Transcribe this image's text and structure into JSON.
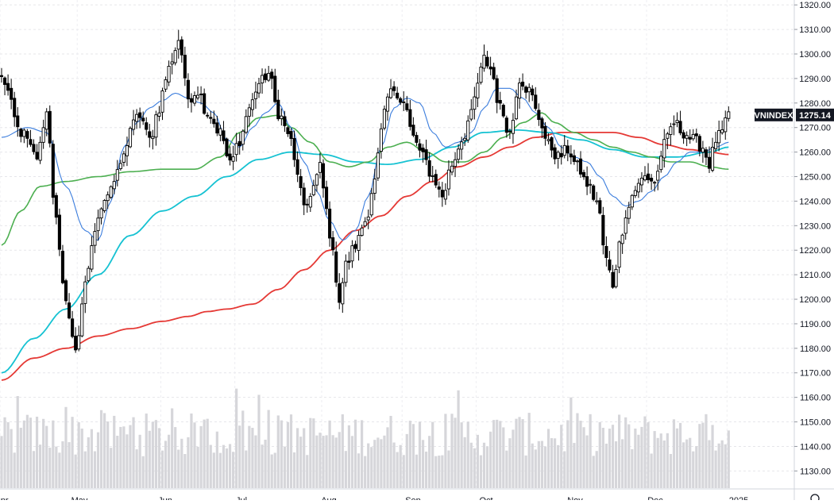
{
  "chart_data": {
    "type": "candlestick",
    "ticker": "VNINDEX",
    "last_price": "1275.14",
    "y_axis": {
      "ticks": [
        "1320.00",
        "1310.00",
        "1300.00",
        "1290.00",
        "1280.00",
        "1270.00",
        "1260.00",
        "1250.00",
        "1240.00",
        "1230.00",
        "1220.00",
        "1210.00",
        "1200.00",
        "1190.00",
        "1180.00",
        "1170.00",
        "1160.00",
        "1150.00",
        "1140.00",
        "1130.00"
      ],
      "range": [
        1123,
        1322
      ]
    },
    "x_axis": {
      "labels": [
        "Apr",
        "May",
        "Jun",
        "Jul",
        "Aug",
        "Sep",
        "Oct",
        "Nov",
        "Dec",
        "2025"
      ]
    },
    "grid": true,
    "colors": {
      "up": "#ffffff",
      "down": "#000000",
      "wick": "#000000",
      "ma_fast": "#3b7ddd",
      "ma_medium": "#16c2d2",
      "ma_slow_green": "#4caf50",
      "ma_long": "#e53935",
      "volume": "#d6d6da"
    },
    "price_anchors": [
      [
        0,
        1290
      ],
      [
        6,
        1268
      ],
      [
        11,
        1258
      ],
      [
        14,
        1276
      ],
      [
        17,
        1232
      ],
      [
        19,
        1205
      ],
      [
        23,
        1180
      ],
      [
        26,
        1205
      ],
      [
        29,
        1228
      ],
      [
        32,
        1242
      ],
      [
        35,
        1248
      ],
      [
        38,
        1258
      ],
      [
        40,
        1270
      ],
      [
        43,
        1275
      ],
      [
        46,
        1265
      ],
      [
        49,
        1278
      ],
      [
        51,
        1290
      ],
      [
        53,
        1298
      ],
      [
        55,
        1306
      ],
      [
        58,
        1282
      ],
      [
        61,
        1285
      ],
      [
        64,
        1276
      ],
      [
        68,
        1268
      ],
      [
        71,
        1255
      ],
      [
        74,
        1265
      ],
      [
        77,
        1278
      ],
      [
        80,
        1288
      ],
      [
        83,
        1292
      ],
      [
        86,
        1276
      ],
      [
        89,
        1268
      ],
      [
        92,
        1252
      ],
      [
        94,
        1236
      ],
      [
        97,
        1246
      ],
      [
        99,
        1254
      ],
      [
        101,
        1236
      ],
      [
        103,
        1218
      ],
      [
        105,
        1200
      ],
      [
        107,
        1214
      ],
      [
        110,
        1222
      ],
      [
        113,
        1232
      ],
      [
        116,
        1248
      ],
      [
        118,
        1268
      ],
      [
        120,
        1282
      ],
      [
        122,
        1286
      ],
      [
        125,
        1280
      ],
      [
        128,
        1266
      ],
      [
        131,
        1258
      ],
      [
        134,
        1250
      ],
      [
        137,
        1242
      ],
      [
        140,
        1255
      ],
      [
        143,
        1265
      ],
      [
        146,
        1275
      ],
      [
        148,
        1288
      ],
      [
        150,
        1298
      ],
      [
        152,
        1294
      ],
      [
        155,
        1278
      ],
      [
        158,
        1268
      ],
      [
        161,
        1290
      ],
      [
        164,
        1285
      ],
      [
        167,
        1274
      ],
      [
        170,
        1263
      ],
      [
        173,
        1258
      ],
      [
        176,
        1261
      ],
      [
        179,
        1254
      ],
      [
        182,
        1247
      ],
      [
        185,
        1240
      ],
      [
        188,
        1216
      ],
      [
        190,
        1206
      ],
      [
        192,
        1222
      ],
      [
        194,
        1235
      ],
      [
        197,
        1245
      ],
      [
        200,
        1250
      ],
      [
        203,
        1248
      ],
      [
        206,
        1263
      ],
      [
        209,
        1272
      ],
      [
        212,
        1268
      ],
      [
        215,
        1265
      ],
      [
        218,
        1262
      ],
      [
        220,
        1255
      ],
      [
        222,
        1265
      ],
      [
        224,
        1268
      ],
      [
        226,
        1275
      ]
    ],
    "ma_fast_anchors": [
      [
        0,
        1266
      ],
      [
        8,
        1270
      ],
      [
        14,
        1268
      ],
      [
        20,
        1246
      ],
      [
        26,
        1228
      ],
      [
        30,
        1224
      ],
      [
        34,
        1240
      ],
      [
        38,
        1262
      ],
      [
        42,
        1272
      ],
      [
        46,
        1278
      ],
      [
        50,
        1281
      ],
      [
        54,
        1284
      ],
      [
        58,
        1282
      ],
      [
        62,
        1280
      ],
      [
        66,
        1276
      ],
      [
        70,
        1265
      ],
      [
        74,
        1262
      ],
      [
        78,
        1270
      ],
      [
        82,
        1276
      ],
      [
        86,
        1280
      ],
      [
        90,
        1270
      ],
      [
        94,
        1256
      ],
      [
        98,
        1244
      ],
      [
        102,
        1232
      ],
      [
        106,
        1224
      ],
      [
        110,
        1228
      ],
      [
        114,
        1242
      ],
      [
        118,
        1262
      ],
      [
        122,
        1278
      ],
      [
        126,
        1282
      ],
      [
        130,
        1280
      ],
      [
        134,
        1268
      ],
      [
        138,
        1262
      ],
      [
        142,
        1264
      ],
      [
        146,
        1268
      ],
      [
        150,
        1278
      ],
      [
        154,
        1286
      ],
      [
        158,
        1286
      ],
      [
        162,
        1282
      ],
      [
        166,
        1276
      ],
      [
        170,
        1270
      ],
      [
        174,
        1262
      ],
      [
        178,
        1258
      ],
      [
        182,
        1256
      ],
      [
        186,
        1250
      ],
      [
        190,
        1242
      ],
      [
        194,
        1238
      ],
      [
        198,
        1240
      ],
      [
        202,
        1244
      ],
      [
        206,
        1250
      ],
      [
        210,
        1256
      ],
      [
        214,
        1260
      ],
      [
        218,
        1260
      ],
      [
        222,
        1262
      ],
      [
        226,
        1264
      ]
    ],
    "ma_medium_anchors": [
      [
        0,
        1170
      ],
      [
        10,
        1184
      ],
      [
        20,
        1196
      ],
      [
        30,
        1210
      ],
      [
        40,
        1226
      ],
      [
        50,
        1236
      ],
      [
        60,
        1242
      ],
      [
        70,
        1250
      ],
      [
        80,
        1257
      ],
      [
        90,
        1260
      ],
      [
        100,
        1259
      ],
      [
        110,
        1256
      ],
      [
        120,
        1255
      ],
      [
        130,
        1257
      ],
      [
        140,
        1262
      ],
      [
        150,
        1268
      ],
      [
        160,
        1269
      ],
      [
        170,
        1268
      ],
      [
        180,
        1265
      ],
      [
        190,
        1261
      ],
      [
        200,
        1258
      ],
      [
        210,
        1258
      ],
      [
        220,
        1260
      ],
      [
        226,
        1262
      ]
    ],
    "ma_slow_green_anchors": [
      [
        0,
        1222
      ],
      [
        6,
        1236
      ],
      [
        12,
        1246
      ],
      [
        20,
        1248
      ],
      [
        30,
        1250
      ],
      [
        40,
        1252
      ],
      [
        50,
        1253
      ],
      [
        60,
        1253
      ],
      [
        68,
        1258
      ],
      [
        74,
        1268
      ],
      [
        80,
        1274
      ],
      [
        86,
        1275
      ],
      [
        90,
        1270
      ],
      [
        96,
        1264
      ],
      [
        102,
        1256
      ],
      [
        108,
        1254
      ],
      [
        114,
        1256
      ],
      [
        120,
        1262
      ],
      [
        126,
        1264
      ],
      [
        132,
        1260
      ],
      [
        138,
        1256
      ],
      [
        144,
        1256
      ],
      [
        150,
        1260
      ],
      [
        156,
        1266
      ],
      [
        162,
        1272
      ],
      [
        168,
        1276
      ],
      [
        172,
        1272
      ],
      [
        178,
        1268
      ],
      [
        184,
        1265
      ],
      [
        190,
        1262
      ],
      [
        196,
        1260
      ],
      [
        202,
        1258
      ],
      [
        208,
        1256
      ],
      [
        214,
        1256
      ],
      [
        220,
        1254
      ],
      [
        226,
        1253
      ]
    ],
    "ma_long_anchors": [
      [
        0,
        1167
      ],
      [
        10,
        1176
      ],
      [
        20,
        1180
      ],
      [
        30,
        1185
      ],
      [
        40,
        1188
      ],
      [
        50,
        1191
      ],
      [
        58,
        1193
      ],
      [
        64,
        1195
      ],
      [
        70,
        1196
      ],
      [
        78,
        1198
      ],
      [
        86,
        1204
      ],
      [
        94,
        1212
      ],
      [
        102,
        1220
      ],
      [
        110,
        1228
      ],
      [
        118,
        1234
      ],
      [
        126,
        1242
      ],
      [
        134,
        1248
      ],
      [
        142,
        1254
      ],
      [
        150,
        1258
      ],
      [
        158,
        1262
      ],
      [
        166,
        1266
      ],
      [
        174,
        1268
      ],
      [
        182,
        1268
      ],
      [
        190,
        1268
      ],
      [
        198,
        1266
      ],
      [
        206,
        1263
      ],
      [
        214,
        1261
      ],
      [
        220,
        1260
      ],
      [
        226,
        1259
      ]
    ]
  }
}
